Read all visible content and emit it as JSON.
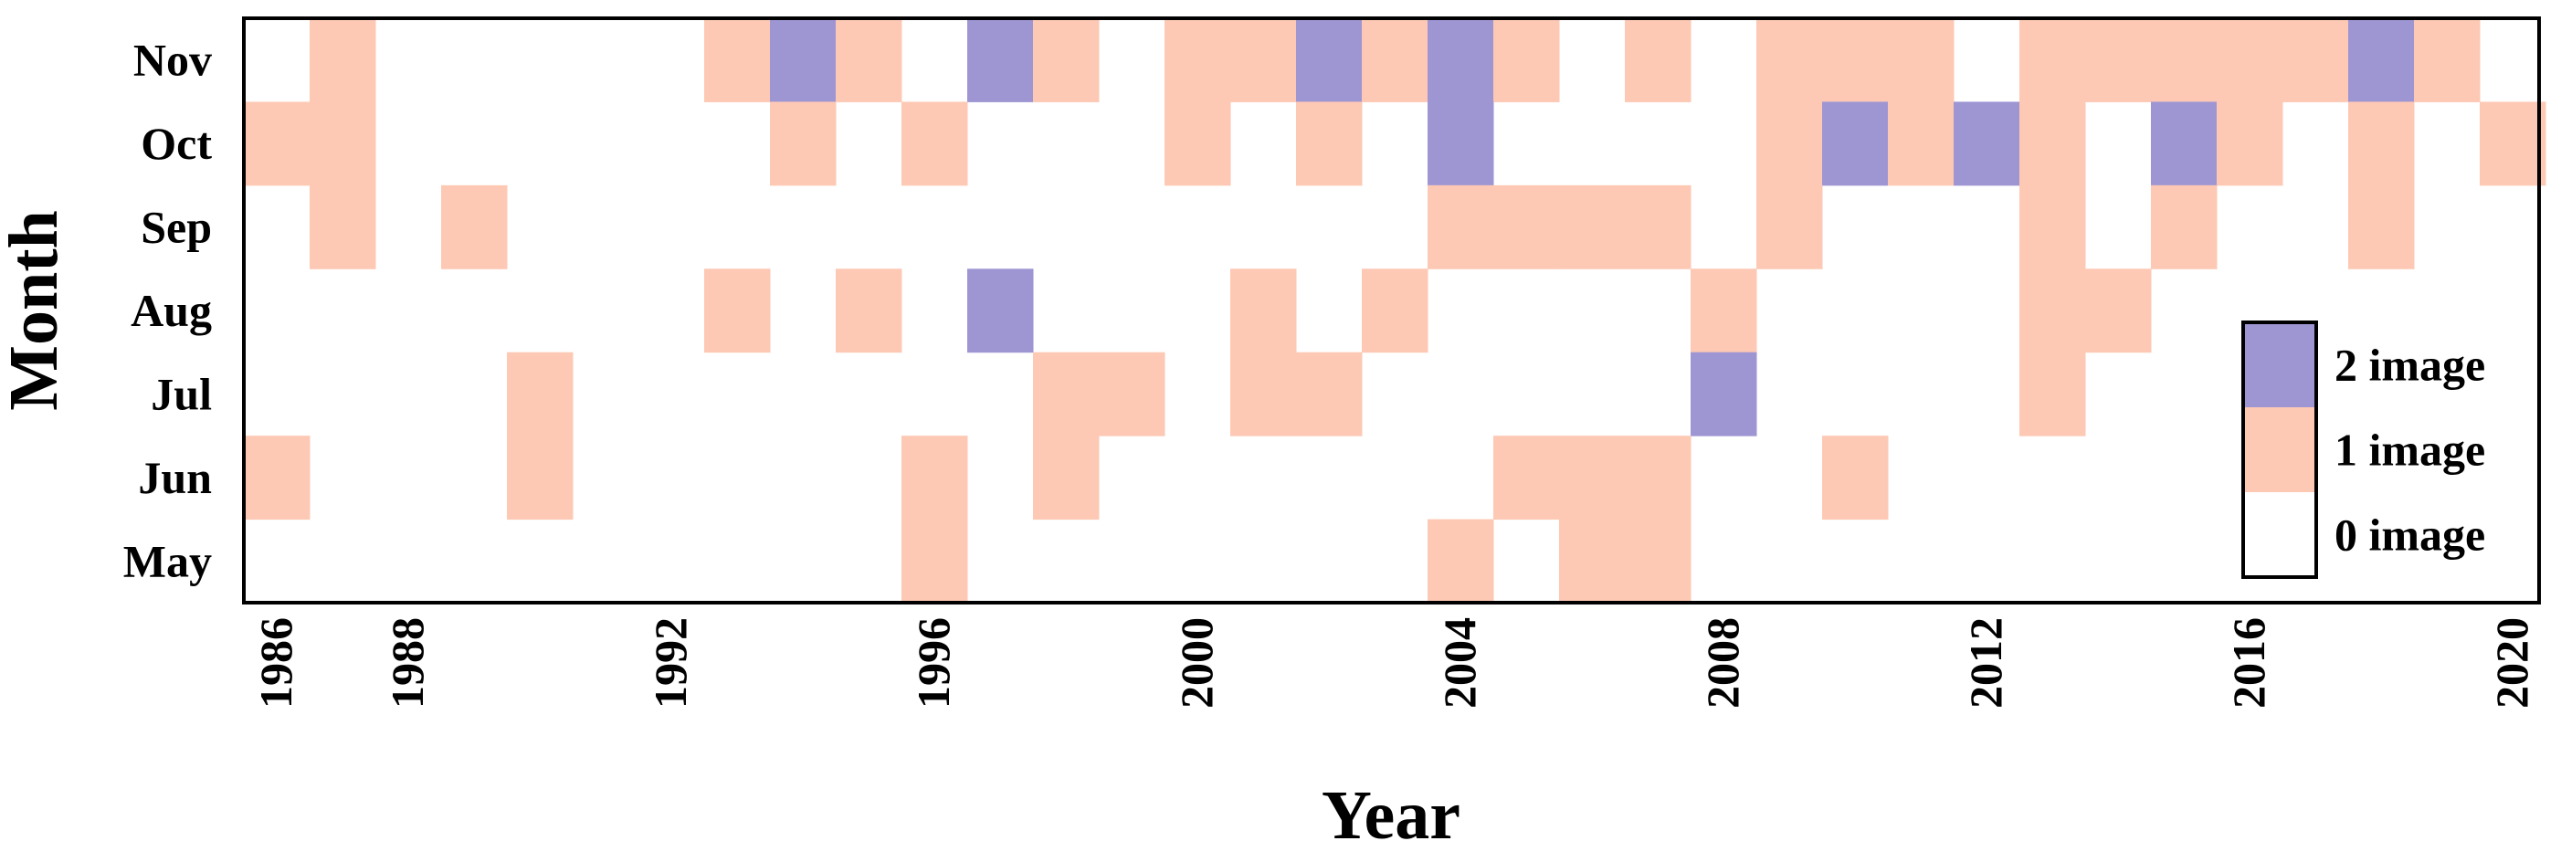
{
  "chart_data": {
    "type": "heatmap",
    "title": "",
    "xlabel": "Year",
    "ylabel": "Month",
    "x": [
      1986,
      1987,
      1988,
      1989,
      1990,
      1991,
      1992,
      1993,
      1994,
      1995,
      1996,
      1997,
      1998,
      1999,
      2000,
      2001,
      2002,
      2003,
      2004,
      2005,
      2006,
      2007,
      2008,
      2009,
      2010,
      2011,
      2012,
      2013,
      2014,
      2015,
      2016,
      2017,
      2018,
      2019,
      2020
    ],
    "x_tick_labels": [
      "1986",
      "1988",
      "1992",
      "1996",
      "2000",
      "2004",
      "2008",
      "2012",
      "2016",
      "2020"
    ],
    "y_categories": [
      "Nov",
      "Oct",
      "Sep",
      "Aug",
      "Jul",
      "Jun",
      "May"
    ],
    "values": [
      [
        0,
        1,
        0,
        0,
        0,
        0,
        0,
        1,
        2,
        1,
        0,
        2,
        1,
        0,
        1,
        1,
        2,
        1,
        2,
        1,
        0,
        1,
        0,
        1,
        1,
        1,
        0,
        1,
        1,
        1,
        1,
        1,
        2,
        1,
        0
      ],
      [
        1,
        1,
        0,
        0,
        0,
        0,
        0,
        0,
        1,
        0,
        1,
        0,
        0,
        0,
        1,
        0,
        1,
        0,
        2,
        0,
        0,
        0,
        0,
        1,
        2,
        1,
        2,
        1,
        0,
        2,
        1,
        0,
        1,
        0,
        1
      ],
      [
        0,
        1,
        0,
        1,
        0,
        0,
        0,
        0,
        0,
        0,
        0,
        0,
        0,
        0,
        0,
        0,
        0,
        0,
        1,
        1,
        1,
        1,
        0,
        1,
        0,
        0,
        0,
        1,
        0,
        1,
        0,
        0,
        1,
        0,
        0
      ],
      [
        0,
        0,
        0,
        0,
        0,
        0,
        0,
        1,
        0,
        1,
        0,
        2,
        0,
        0,
        0,
        1,
        0,
        1,
        0,
        0,
        0,
        0,
        1,
        0,
        0,
        0,
        0,
        1,
        1,
        0,
        0,
        0,
        0,
        0,
        0
      ],
      [
        0,
        0,
        0,
        0,
        1,
        0,
        0,
        0,
        0,
        0,
        0,
        0,
        1,
        1,
        0,
        1,
        1,
        0,
        0,
        0,
        0,
        0,
        2,
        0,
        0,
        0,
        0,
        1,
        0,
        0,
        0,
        0,
        0,
        0,
        0
      ],
      [
        1,
        0,
        0,
        0,
        1,
        0,
        0,
        0,
        0,
        0,
        1,
        0,
        1,
        0,
        0,
        0,
        0,
        0,
        0,
        1,
        1,
        1,
        0,
        0,
        1,
        0,
        0,
        0,
        0,
        0,
        0,
        0,
        0,
        0,
        0
      ],
      [
        0,
        0,
        0,
        0,
        0,
        0,
        0,
        0,
        0,
        0,
        1,
        0,
        0,
        0,
        0,
        0,
        0,
        0,
        1,
        0,
        1,
        1,
        0,
        0,
        0,
        0,
        0,
        0,
        0,
        0,
        0,
        0,
        0,
        0,
        0
      ]
    ],
    "legend": {
      "placement": "bottom-right",
      "items": [
        {
          "value": 2,
          "label": "2 image",
          "color": "#9e96d2"
        },
        {
          "value": 1,
          "label": "1 image",
          "color": "#fdc9b4"
        },
        {
          "value": 0,
          "label": "0 image",
          "color": "#ffffff"
        }
      ]
    },
    "grid": false
  }
}
